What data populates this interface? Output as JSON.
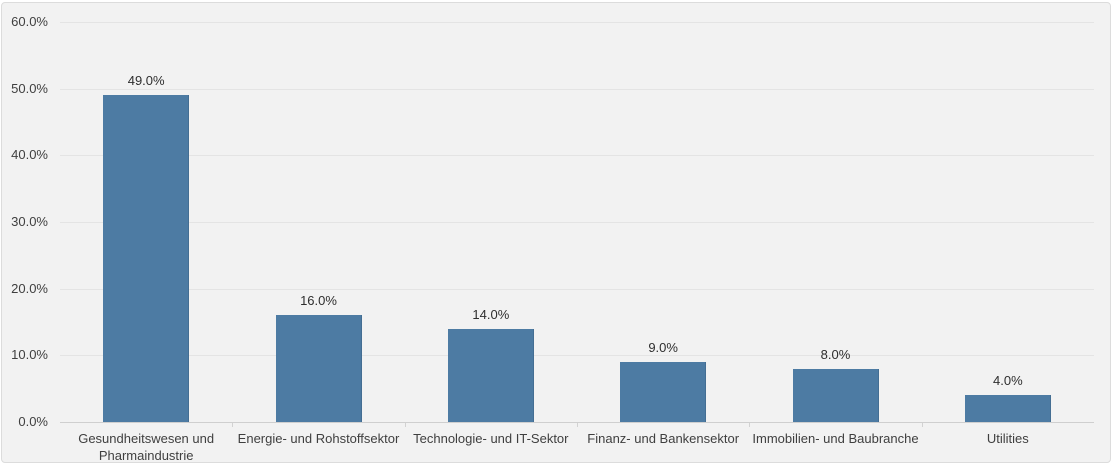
{
  "chart_data": {
    "type": "bar",
    "title": "",
    "xlabel": "",
    "ylabel": "",
    "categories": [
      "Gesundheitswesen und Pharmaindustrie",
      "Energie- und Rohstoffsektor",
      "Technologie- und IT-Sektor",
      "Finanz- und Bankensektor",
      "Immobilien- und Baubranche",
      "Utilities"
    ],
    "values": [
      49.0,
      16.0,
      14.0,
      9.0,
      8.0,
      4.0
    ],
    "value_labels": [
      "49.0%",
      "16.0%",
      "14.0%",
      "9.0%",
      "8.0%",
      "4.0%"
    ],
    "ytick_values": [
      0,
      10,
      20,
      30,
      40,
      50,
      60
    ],
    "ytick_labels": [
      "0.0%",
      "10.0%",
      "20.0%",
      "30.0%",
      "40.0%",
      "50.0%",
      "60.0%"
    ],
    "ylim": [
      0,
      60
    ],
    "grid": true,
    "legend_position": "none"
  },
  "colors": {
    "bar_fill": "#4d7ba3",
    "bar_edge": "#446e93",
    "panel_bg": "#f2f2f2",
    "panel_border": "#dcdcdc",
    "gridline": "#e4e4e4",
    "axis_line": "#cfcfcf",
    "tick_mark": "#d2d2d2",
    "tick_text": "#3f3f3f",
    "value_text": "#2e2e2e",
    "page_bg": "#ffffff"
  }
}
